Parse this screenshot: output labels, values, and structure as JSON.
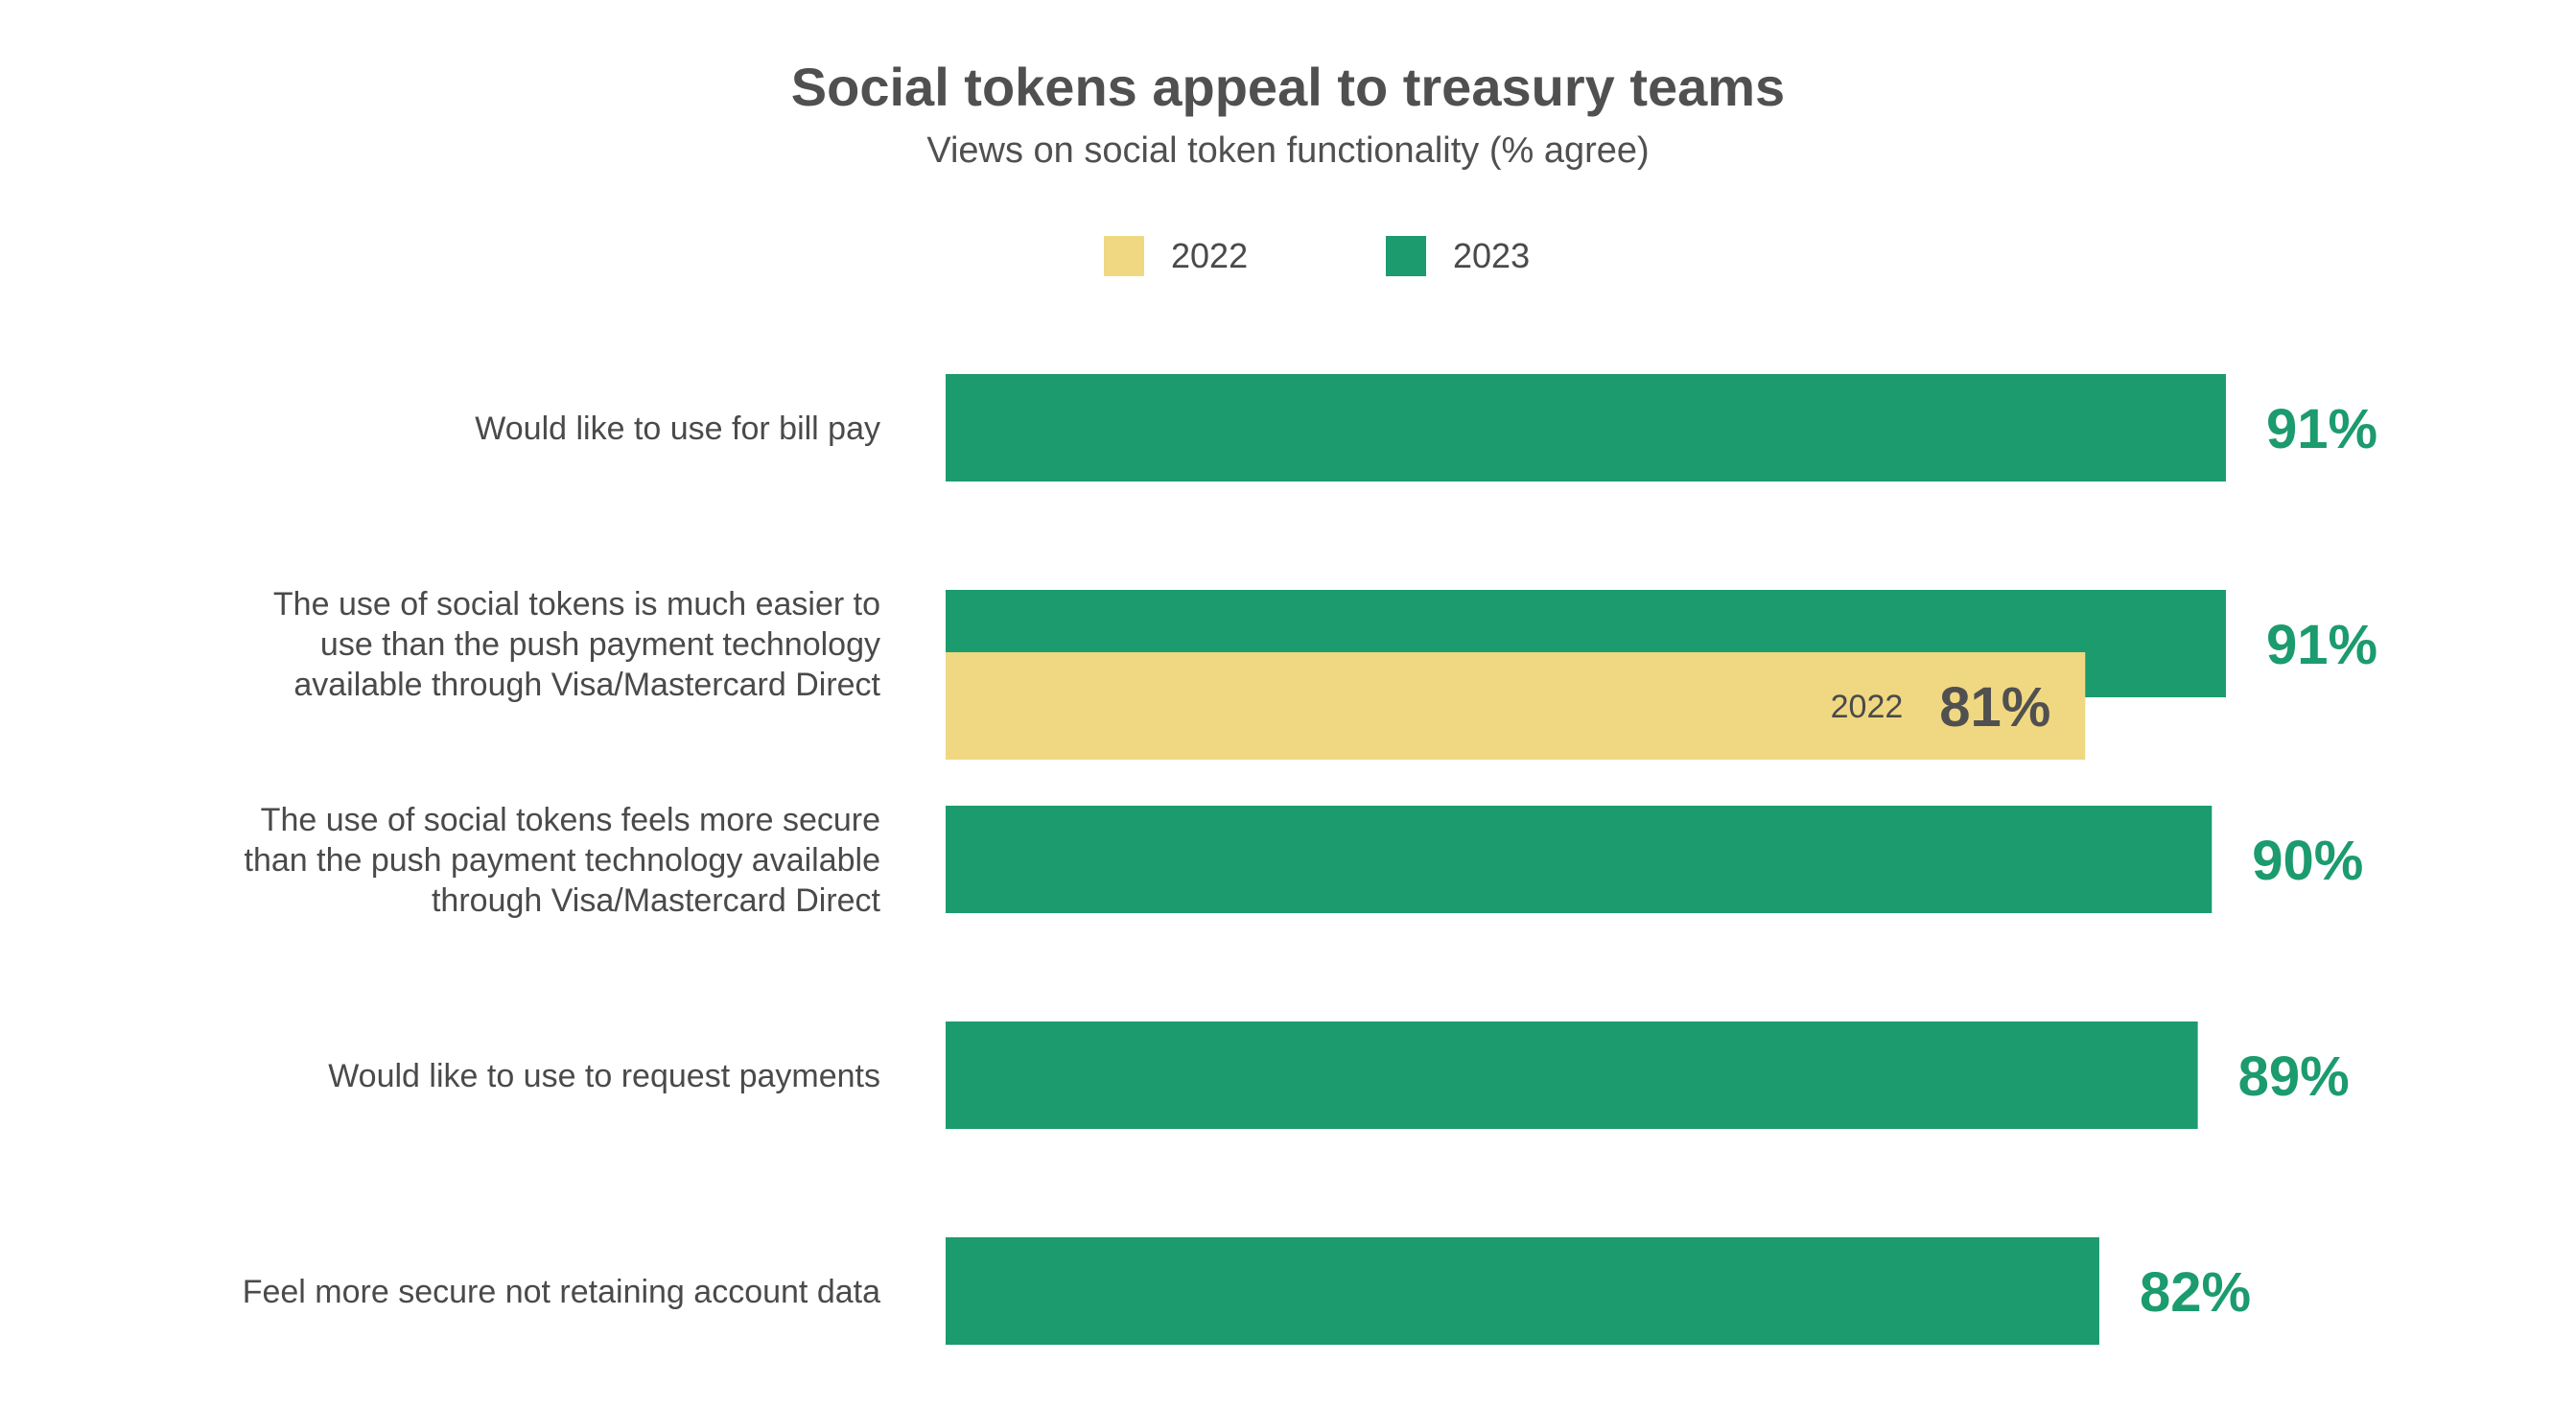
{
  "chart_data": {
    "type": "bar",
    "orientation": "horizontal",
    "title": "Social tokens appeal to treasury teams",
    "subtitle": "Views on social token functionality (% agree)",
    "categories": [
      [
        "Would like to use for bill pay"
      ],
      [
        "The use of social tokens is much easier to",
        "use than the push payment technology",
        "available through Visa/Mastercard Direct"
      ],
      [
        "The use of social tokens feels more secure",
        "than the push payment technology available",
        "through Visa/Mastercard Direct"
      ],
      [
        "Would like to use to request payments"
      ],
      [
        "Feel more secure not retaining account data"
      ]
    ],
    "series": [
      {
        "name": "2023",
        "color": "#1b9b6e",
        "values": [
          91,
          91,
          90,
          89,
          82
        ],
        "labels": [
          "91%",
          "91%",
          "90%",
          "89%",
          "82%"
        ]
      },
      {
        "name": "2022",
        "color": "#f0d882",
        "values": [
          null,
          81,
          null,
          null,
          null
        ],
        "labels": [
          null,
          "81%",
          null,
          null,
          null
        ],
        "tag": "2022"
      }
    ],
    "xlim": [
      0,
      100
    ],
    "grid": false,
    "legend": "top-center",
    "legend_order": [
      "2022",
      "2023"
    ],
    "label_colors": {
      "2023": "#1b9b6e",
      "2022": "#505050"
    }
  }
}
